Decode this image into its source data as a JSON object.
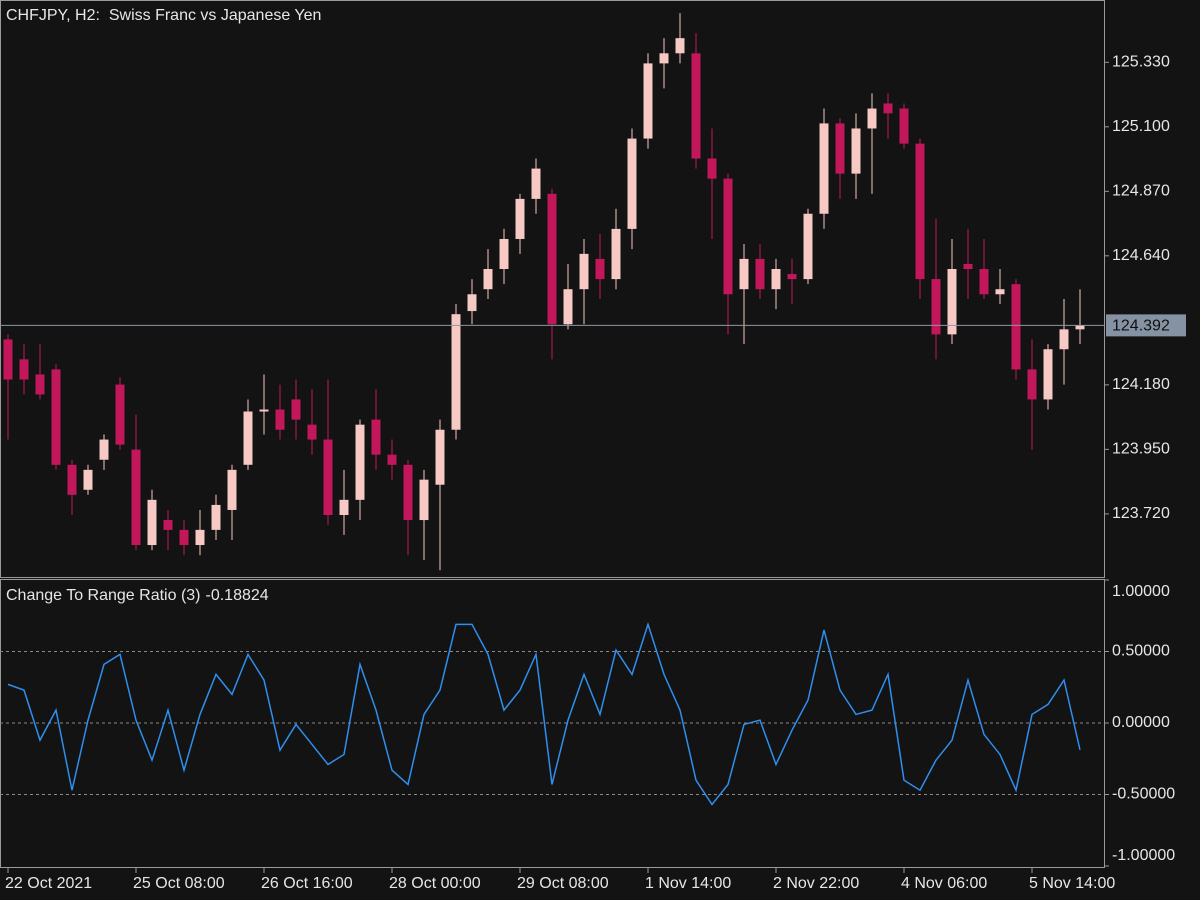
{
  "chart_data": [
    {
      "type": "candlestick",
      "title": "CHFJPY, H2:  Swiss Franc vs Japanese Yen",
      "categories": [
        "22 Oct 2021",
        null,
        null,
        null,
        null,
        null,
        null,
        null,
        "25 Oct 08:00",
        null,
        null,
        null,
        null,
        null,
        null,
        null,
        "26 Oct 16:00",
        null,
        null,
        null,
        null,
        null,
        null,
        null,
        "28 Oct 00:00",
        null,
        null,
        null,
        null,
        null,
        null,
        null,
        "29 Oct 08:00",
        null,
        null,
        null,
        null,
        null,
        null,
        null,
        "1 Nov 14:00",
        null,
        null,
        null,
        null,
        null,
        null,
        null,
        "2 Nov 22:00",
        null,
        null,
        null,
        null,
        null,
        null,
        null,
        "4 Nov 06:00",
        null,
        null,
        null,
        null,
        null,
        null,
        null,
        "5 Nov 14:00",
        null,
        null,
        null
      ],
      "open": [
        124.342,
        124.271,
        124.217,
        124.235,
        123.895,
        123.806,
        123.913,
        124.181,
        123.949,
        123.609,
        123.698,
        123.663,
        123.609,
        123.663,
        123.734,
        123.895,
        124.085,
        124.092,
        124.128,
        124.038,
        123.985,
        123.716,
        123.77,
        124.056,
        123.931,
        123.895,
        123.698,
        123.824,
        124.02,
        124.443,
        124.521,
        124.593,
        124.7,
        124.843,
        124.861,
        124.396,
        124.521,
        124.629,
        124.557,
        124.736,
        125.058,
        125.326,
        125.362,
        125.362,
        124.987,
        124.915,
        124.521,
        124.629,
        124.521,
        124.575,
        124.557,
        124.79,
        125.112,
        124.933,
        125.094,
        125.183,
        125.165,
        125.04,
        124.557,
        124.36,
        124.611,
        124.593,
        124.503,
        124.539,
        124.235,
        124.128,
        124.307,
        124.378
      ],
      "high": [
        124.36,
        124.325,
        124.325,
        124.253,
        123.913,
        123.895,
        124.003,
        124.207,
        124.074,
        123.806,
        123.734,
        123.698,
        123.734,
        123.788,
        123.895,
        124.128,
        124.217,
        124.181,
        124.199,
        124.164,
        124.199,
        123.877,
        124.056,
        124.164,
        123.985,
        123.913,
        123.877,
        124.056,
        124.468,
        124.557,
        124.664,
        124.736,
        124.861,
        124.987,
        124.879,
        124.611,
        124.7,
        124.718,
        124.808,
        125.094,
        125.362,
        125.416,
        125.505,
        125.434,
        125.094,
        124.933,
        124.682,
        124.682,
        124.629,
        124.629,
        124.808,
        125.165,
        125.13,
        125.148,
        125.219,
        125.219,
        125.183,
        125.058,
        124.772,
        124.7,
        124.736,
        124.7,
        124.593,
        124.557,
        124.342,
        124.325,
        124.486,
        124.521
      ],
      "low": [
        123.985,
        124.146,
        124.128,
        123.877,
        123.716,
        123.788,
        123.877,
        123.949,
        123.591,
        123.591,
        123.591,
        123.573,
        123.573,
        123.627,
        123.627,
        123.877,
        124.003,
        123.985,
        123.985,
        123.931,
        123.681,
        123.645,
        123.698,
        123.877,
        123.842,
        123.573,
        123.555,
        123.519,
        123.985,
        124.396,
        124.486,
        124.539,
        124.647,
        124.79,
        124.271,
        124.378,
        124.396,
        124.486,
        124.521,
        124.664,
        125.022,
        125.237,
        125.326,
        124.951,
        124.7,
        124.36,
        124.325,
        124.486,
        124.45,
        124.468,
        124.539,
        124.736,
        124.843,
        124.843,
        124.861,
        125.058,
        125.022,
        124.486,
        124.271,
        124.325,
        124.486,
        124.486,
        124.468,
        124.199,
        123.949,
        124.092,
        124.181,
        124.325
      ],
      "close": [
        124.199,
        124.199,
        124.146,
        123.895,
        123.788,
        123.877,
        123.985,
        123.967,
        123.609,
        123.77,
        123.663,
        123.609,
        123.663,
        123.752,
        123.877,
        124.085,
        124.092,
        124.02,
        124.056,
        123.985,
        123.716,
        123.77,
        124.038,
        123.931,
        123.895,
        123.698,
        123.842,
        124.02,
        124.432,
        124.503,
        124.593,
        124.7,
        124.843,
        124.951,
        124.396,
        124.521,
        124.647,
        124.557,
        124.736,
        125.058,
        125.326,
        125.362,
        125.416,
        124.987,
        124.915,
        124.503,
        124.629,
        124.521,
        124.593,
        124.557,
        124.79,
        125.112,
        124.933,
        125.094,
        125.165,
        125.148,
        125.04,
        124.557,
        124.36,
        124.593,
        124.593,
        124.503,
        124.521,
        124.235,
        124.128,
        124.307,
        124.378,
        124.392
      ],
      "up_color": "#f6c9c4",
      "down_color": "#c2185b",
      "current_price": 124.392,
      "ylim": [
        123.495,
        125.552
      ],
      "yticks": [
        {
          "value": 123.72,
          "label": "123.720"
        },
        {
          "value": 123.95,
          "label": "123.950"
        },
        {
          "value": 124.18,
          "label": "124.180"
        },
        {
          "value": 124.64,
          "label": "124.640"
        },
        {
          "value": 124.87,
          "label": "124.870"
        },
        {
          "value": 125.1,
          "label": "125.100"
        },
        {
          "value": 125.33,
          "label": "125.330"
        }
      ]
    },
    {
      "type": "line",
      "title": "Change To Range Ratio (3)",
      "current_value": -0.18824,
      "color": "#2f8fee",
      "values": [
        0.27,
        0.23,
        -0.12,
        0.09,
        -0.47,
        0.02,
        0.41,
        0.48,
        0.02,
        -0.26,
        0.09,
        -0.33,
        0.06,
        0.34,
        0.2,
        0.48,
        0.3,
        -0.19,
        -0.01,
        -0.15,
        -0.29,
        -0.22,
        0.41,
        0.09,
        -0.33,
        -0.43,
        0.06,
        0.23,
        0.69,
        0.69,
        0.48,
        0.09,
        0.23,
        0.48,
        -0.43,
        0.02,
        0.34,
        0.06,
        0.51,
        0.34,
        0.69,
        0.34,
        0.09,
        -0.4,
        -0.57,
        -0.43,
        -0.01,
        0.02,
        -0.29,
        -0.05,
        0.16,
        0.65,
        0.23,
        0.06,
        0.09,
        0.34,
        -0.4,
        -0.47,
        -0.26,
        -0.12,
        0.3,
        -0.08,
        -0.22,
        -0.47,
        0.06,
        0.13,
        0.3,
        -0.188
      ],
      "ylim": [
        -1.0,
        1.0
      ],
      "yticks": [
        {
          "value": -1.0,
          "label": "-1.00000"
        },
        {
          "value": -0.5,
          "label": "-0.50000"
        },
        {
          "value": 0,
          "label": "0.00000"
        },
        {
          "value": 0.5,
          "label": "0.50000"
        },
        {
          "value": 1.0,
          "label": "1.00000"
        }
      ],
      "grid": true
    }
  ]
}
